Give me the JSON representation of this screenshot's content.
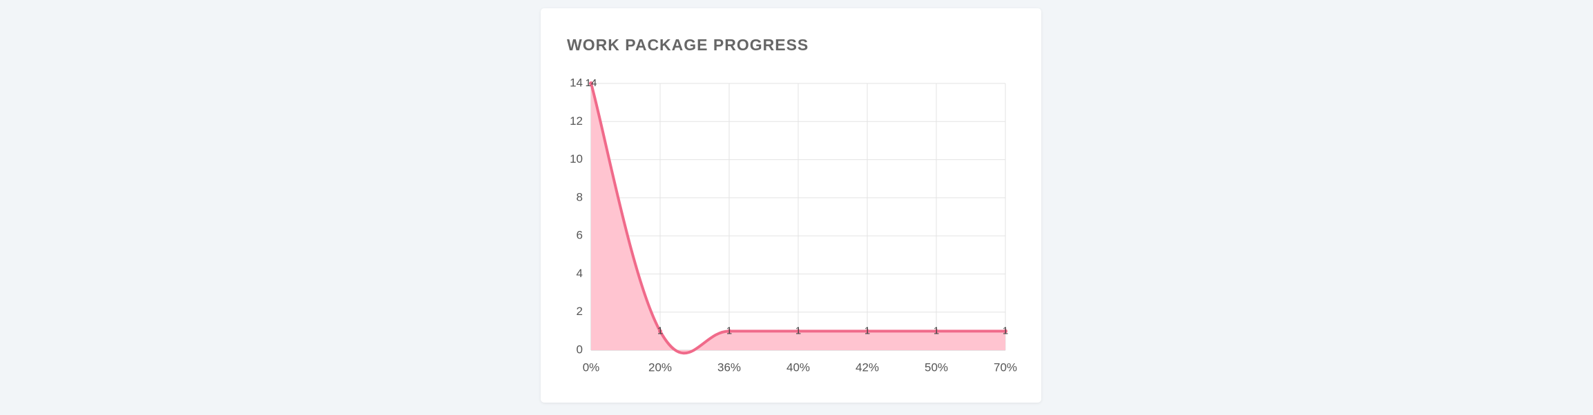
{
  "chart_data": {
    "type": "line",
    "title": "WORK PACKAGE PROGRESS",
    "categories": [
      "0%",
      "20%",
      "36%",
      "40%",
      "42%",
      "50%",
      "70%"
    ],
    "values": [
      14,
      1,
      1,
      1,
      1,
      1,
      1
    ],
    "color": "#f06a8a",
    "fill": "#ffc4d0",
    "ylim": [
      0,
      14
    ],
    "yticks": [
      0,
      2,
      4,
      6,
      8,
      10,
      12,
      14
    ],
    "grid": true
  }
}
